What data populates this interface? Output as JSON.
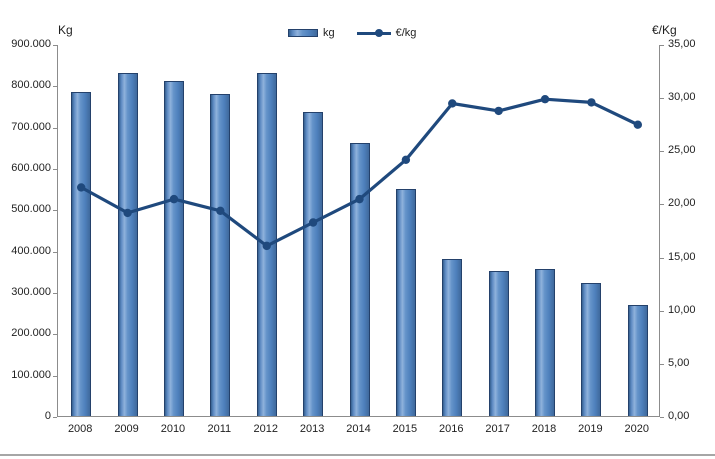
{
  "colors": {
    "bar_fill": "#4f81bd",
    "bar_border": "#24416b",
    "line": "#1f497d",
    "axis": "#8c8c8c",
    "text": "#1f1f1f",
    "separator": "#a6a6a6"
  },
  "legend": {
    "bar_label": "kg",
    "line_label": "€/kg"
  },
  "chart_data": {
    "type": "combo",
    "categories": [
      "2008",
      "2009",
      "2010",
      "2011",
      "2012",
      "2013",
      "2014",
      "2015",
      "2016",
      "2017",
      "2018",
      "2019",
      "2020"
    ],
    "series": [
      {
        "name": "kg",
        "type": "bar",
        "axis": "left",
        "values": [
          785000,
          830000,
          810000,
          778000,
          830000,
          735000,
          660000,
          550000,
          380000,
          350000,
          355000,
          322000,
          268000
        ]
      },
      {
        "name": "€/kg",
        "type": "line",
        "axis": "right",
        "values": [
          21.6,
          19.2,
          20.5,
          19.4,
          16.1,
          18.3,
          20.5,
          24.2,
          29.5,
          28.8,
          29.9,
          29.6,
          27.5
        ]
      }
    ],
    "left_axis": {
      "title": "Kg",
      "min": 0,
      "max": 900000,
      "tick_step": 100000,
      "tick_labels": [
        "0",
        "100.000",
        "200.000",
        "300.000",
        "400.000",
        "500.000",
        "600.000",
        "700.000",
        "800.000",
        "900.000"
      ]
    },
    "right_axis": {
      "title": "€/Kg",
      "min": 0,
      "max": 35,
      "tick_step": 5,
      "tick_labels": [
        "0,00",
        "5,00",
        "10,00",
        "15,00",
        "20,00",
        "25,00",
        "30,00",
        "35,00"
      ]
    },
    "legend_position": "top",
    "grid": false
  }
}
